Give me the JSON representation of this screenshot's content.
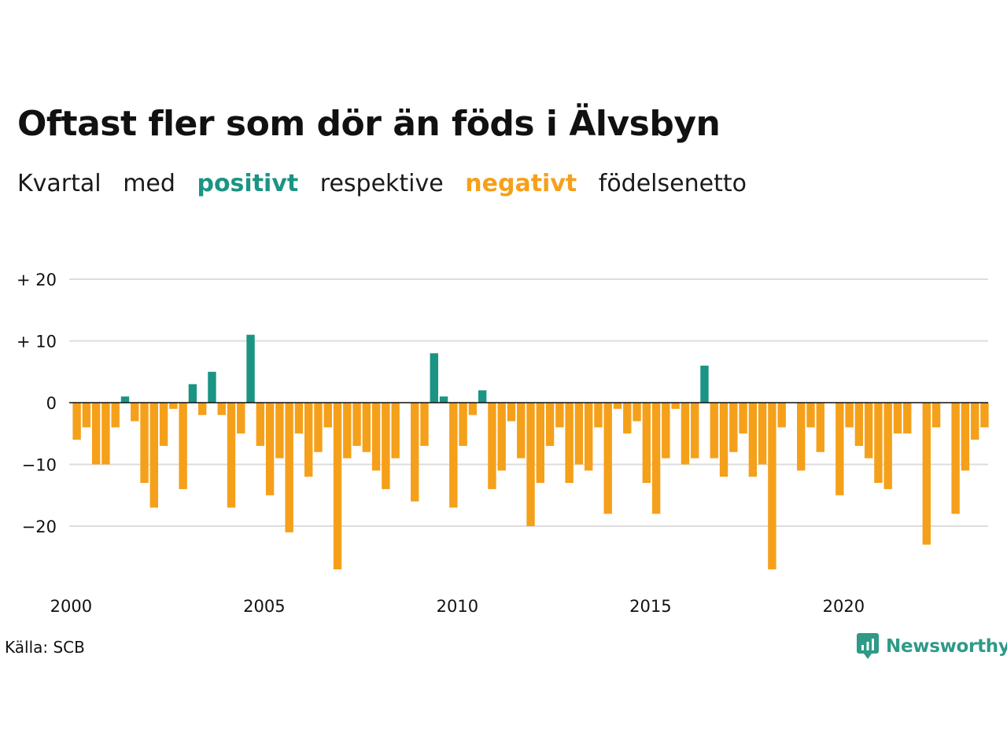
{
  "title": "Oftast fler som dör än föds i Älvsbyn",
  "subtitle": {
    "part1": "Kvartal",
    "part2": "med",
    "positive_word": "positivt",
    "part3": "respektive",
    "negative_word": "negativt",
    "part4": "födelsenetto"
  },
  "colors": {
    "positive": "#1b9484",
    "negative": "#f5a01a",
    "grid": "#dddddd",
    "zero": "#111111"
  },
  "source": "Källa: SCB",
  "brand": {
    "name": "Newsworthy",
    "icon": "newsworthy-logo-icon"
  },
  "chart_data": {
    "type": "bar",
    "title": "Oftast fler som dör än föds i Älvsbyn",
    "subtitle": "Kvartal med positivt respektive negativt födelsenetto",
    "xlabel": "",
    "ylabel": "",
    "ylim": [
      -29,
      20
    ],
    "y_ticks": [
      {
        "value": 20,
        "label": "+ 20"
      },
      {
        "value": 10,
        "label": "+ 10"
      },
      {
        "value": 0,
        "label": "0"
      },
      {
        "value": -10,
        "label": "−10"
      },
      {
        "value": -20,
        "label": "−20"
      }
    ],
    "x_ticks": [
      {
        "value": 2000,
        "label": "2000"
      },
      {
        "value": 2005,
        "label": "2005"
      },
      {
        "value": 2010,
        "label": "2010"
      },
      {
        "value": 2015,
        "label": "2015"
      },
      {
        "value": 2020,
        "label": "2020"
      }
    ],
    "start_year": 2000,
    "grid": true,
    "values": [
      -6,
      -4,
      -10,
      -10,
      -4,
      1,
      -3,
      -13,
      -17,
      -7,
      -1,
      -14,
      3,
      -2,
      5,
      -2,
      -17,
      -5,
      11,
      -7,
      -15,
      -9,
      -21,
      -5,
      -12,
      -8,
      -4,
      -27,
      -9,
      -7,
      -8,
      -11,
      -14,
      -9,
      0,
      -16,
      -7,
      8,
      1,
      -17,
      -7,
      -2,
      2,
      -14,
      -11,
      -3,
      -9,
      -20,
      -13,
      -7,
      -4,
      -13,
      -10,
      -11,
      -4,
      -18,
      -1,
      -5,
      -3,
      -13,
      -18,
      -9,
      -1,
      -10,
      -9,
      6,
      -9,
      -12,
      -8,
      -5,
      -12,
      -10,
      -27,
      -4,
      0,
      -11,
      -4,
      -8,
      0,
      -15,
      -4,
      -7,
      -9,
      -13,
      -14,
      -5,
      -5,
      0,
      -23,
      -4,
      0,
      -18,
      -11,
      -6,
      -4
    ]
  }
}
